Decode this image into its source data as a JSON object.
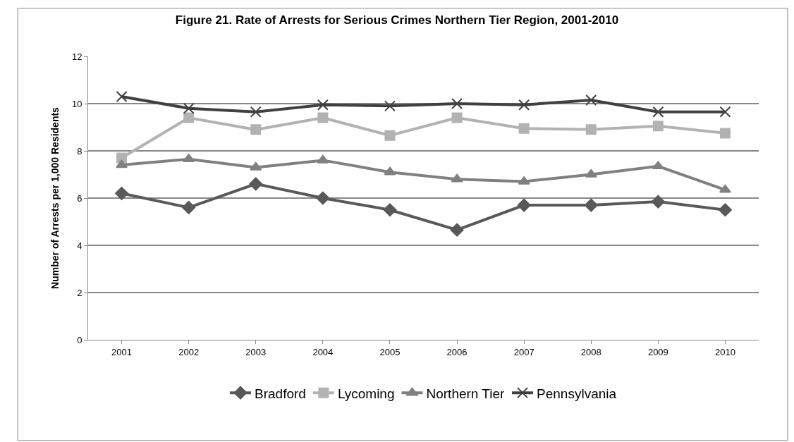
{
  "chart_data": {
    "type": "line",
    "title": "Figure 21. Rate of Arrests for Serious Crimes Northern Tier Region, 2001-2010",
    "ylabel": "Number of Arrests per 1,000 Residents",
    "categories": [
      "2001",
      "2002",
      "2003",
      "2004",
      "2005",
      "2006",
      "2007",
      "2008",
      "2009",
      "2010"
    ],
    "ylim": [
      0,
      12
    ],
    "yticks": [
      0,
      2,
      4,
      6,
      8,
      10,
      12
    ],
    "grid": "y",
    "legend": "bottom",
    "line_style": "solid",
    "series": [
      {
        "name": "Bradford",
        "color": "#595959",
        "marker": "diamond",
        "values": [
          6.2,
          5.6,
          6.6,
          6.0,
          5.5,
          4.65,
          5.7,
          5.7,
          5.85,
          5.5
        ]
      },
      {
        "name": "Lycoming",
        "color": "#b2b2b2",
        "marker": "square",
        "values": [
          7.7,
          9.4,
          8.9,
          9.4,
          8.65,
          9.4,
          8.95,
          8.9,
          9.05,
          8.75
        ]
      },
      {
        "name": "Northern Tier",
        "color": "#808080",
        "marker": "triangle",
        "values": [
          7.4,
          7.65,
          7.3,
          7.6,
          7.1,
          6.8,
          6.7,
          7.0,
          7.35,
          6.35
        ]
      },
      {
        "name": "Pennsylvania",
        "color": "#404040",
        "marker": "cross",
        "values": [
          10.3,
          9.8,
          9.65,
          9.95,
          9.9,
          10.0,
          9.95,
          10.15,
          9.65,
          9.65
        ]
      }
    ]
  }
}
